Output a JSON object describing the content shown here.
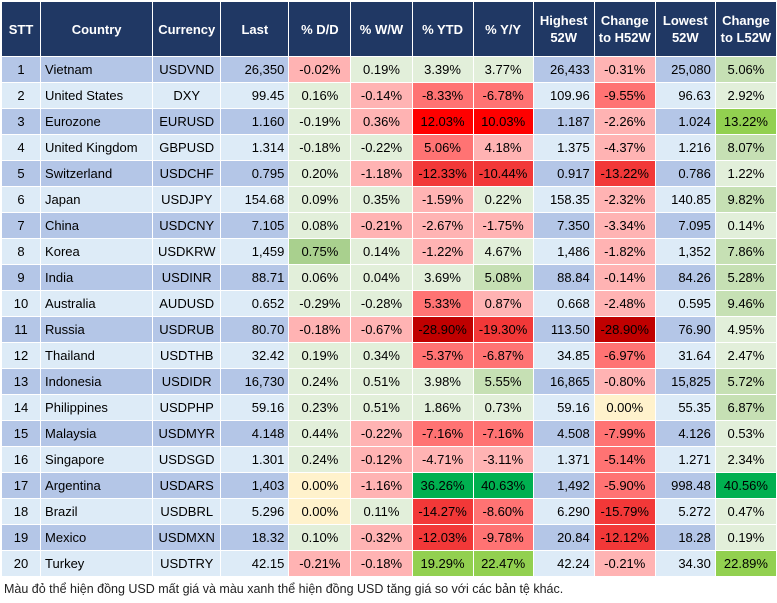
{
  "headers": [
    "STT",
    "Country",
    "Currency",
    "Last",
    "% D/D",
    "% W/W",
    "% YTD",
    "% Y/Y",
    "Highest 52W",
    "Change to H52W",
    "Lowest 52W",
    "Change to L52W"
  ],
  "rows": [
    {
      "stt": "1",
      "country": "Vietnam",
      "currency": "USDVND",
      "last": "26,350",
      "dd": "-0.02%",
      "ww": "0.19%",
      "ytd": "3.39%",
      "yy": "3.77%",
      "high": "26,433",
      "h52": "-0.31%",
      "low": "25,080",
      "l52": "5.06%",
      "colors": [
        "r1",
        "g1",
        "g1",
        "g1",
        "r1",
        "g2"
      ]
    },
    {
      "stt": "2",
      "country": "United States",
      "currency": "DXY",
      "last": "99.45",
      "dd": "0.16%",
      "ww": "-0.14%",
      "ytd": "-8.33%",
      "yy": "-6.78%",
      "high": "109.96",
      "h52": "-9.55%",
      "low": "96.63",
      "l52": "2.92%",
      "colors": [
        "g1",
        "r1",
        "r2",
        "r2",
        "r2",
        "g1"
      ]
    },
    {
      "stt": "3",
      "country": "Eurozone",
      "currency": "EURUSD",
      "last": "1.160",
      "dd": "-0.19%",
      "ww": "0.36%",
      "ytd": "12.03%",
      "yy": "10.03%",
      "high": "1.187",
      "h52": "-2.26%",
      "low": "1.024",
      "l52": "13.22%",
      "colors": [
        "g1",
        "r1",
        "r4",
        "r4",
        "r1",
        "g4"
      ]
    },
    {
      "stt": "4",
      "country": "United Kingdom",
      "currency": "GBPUSD",
      "last": "1.314",
      "dd": "-0.18%",
      "ww": "-0.22%",
      "ytd": "5.06%",
      "yy": "4.18%",
      "high": "1.375",
      "h52": "-4.37%",
      "low": "1.216",
      "l52": "8.07%",
      "colors": [
        "g1",
        "g1",
        "r2",
        "r1",
        "r1",
        "g2"
      ]
    },
    {
      "stt": "5",
      "country": "Switzerland",
      "currency": "USDCHF",
      "last": "0.795",
      "dd": "0.20%",
      "ww": "-1.18%",
      "ytd": "-12.33%",
      "yy": "-10.44%",
      "high": "0.917",
      "h52": "-13.22%",
      "low": "0.786",
      "l52": "1.22%",
      "colors": [
        "g1",
        "r1",
        "r3",
        "r3",
        "r3",
        "g1"
      ]
    },
    {
      "stt": "6",
      "country": "Japan",
      "currency": "USDJPY",
      "last": "154.68",
      "dd": "0.09%",
      "ww": "0.35%",
      "ytd": "-1.59%",
      "yy": "0.22%",
      "high": "158.35",
      "h52": "-2.32%",
      "low": "140.85",
      "l52": "9.82%",
      "colors": [
        "g1",
        "g1",
        "r1",
        "g1",
        "r1",
        "g2"
      ]
    },
    {
      "stt": "7",
      "country": "China",
      "currency": "USDCNY",
      "last": "7.105",
      "dd": "0.08%",
      "ww": "-0.21%",
      "ytd": "-2.67%",
      "yy": "-1.75%",
      "high": "7.350",
      "h52": "-3.34%",
      "low": "7.095",
      "l52": "0.14%",
      "colors": [
        "g1",
        "r1",
        "r1",
        "r1",
        "r1",
        "g1"
      ]
    },
    {
      "stt": "8",
      "country": "Korea",
      "currency": "USDKRW",
      "last": "1,459",
      "dd": "0.75%",
      "ww": "0.14%",
      "ytd": "-1.22%",
      "yy": "4.67%",
      "high": "1,486",
      "h52": "-1.82%",
      "low": "1,352",
      "l52": "7.86%",
      "colors": [
        "g3",
        "g1",
        "r1",
        "g1",
        "r1",
        "g2"
      ]
    },
    {
      "stt": "9",
      "country": "India",
      "currency": "USDINR",
      "last": "88.71",
      "dd": "0.06%",
      "ww": "0.04%",
      "ytd": "3.69%",
      "yy": "5.08%",
      "high": "88.84",
      "h52": "-0.14%",
      "low": "84.26",
      "l52": "5.28%",
      "colors": [
        "g1",
        "g1",
        "g1",
        "g2",
        "r1",
        "g2"
      ]
    },
    {
      "stt": "10",
      "country": "Australia",
      "currency": "AUDUSD",
      "last": "0.652",
      "dd": "-0.29%",
      "ww": "-0.28%",
      "ytd": "5.33%",
      "yy": "0.87%",
      "high": "0.668",
      "h52": "-2.48%",
      "low": "0.595",
      "l52": "9.46%",
      "colors": [
        "g1",
        "g1",
        "r2",
        "r1",
        "r1",
        "g2"
      ]
    },
    {
      "stt": "11",
      "country": "Russia",
      "currency": "USDRUB",
      "last": "80.70",
      "dd": "-0.18%",
      "ww": "-0.67%",
      "ytd": "-28.90%",
      "yy": "-19.30%",
      "high": "113.50",
      "h52": "-28.90%",
      "low": "76.90",
      "l52": "4.95%",
      "colors": [
        "r1",
        "r1",
        "r5",
        "r3",
        "r5",
        "g1"
      ]
    },
    {
      "stt": "12",
      "country": "Thailand",
      "currency": "USDTHB",
      "last": "32.42",
      "dd": "0.19%",
      "ww": "0.34%",
      "ytd": "-5.37%",
      "yy": "-6.87%",
      "high": "34.85",
      "h52": "-6.97%",
      "low": "31.64",
      "l52": "2.47%",
      "colors": [
        "g1",
        "g1",
        "r2",
        "r2",
        "r2",
        "g1"
      ]
    },
    {
      "stt": "13",
      "country": "Indonesia",
      "currency": "USDIDR",
      "last": "16,730",
      "dd": "0.24%",
      "ww": "0.51%",
      "ytd": "3.98%",
      "yy": "5.55%",
      "high": "16,865",
      "h52": "-0.80%",
      "low": "15,825",
      "l52": "5.72%",
      "colors": [
        "g1",
        "g1",
        "g1",
        "g2",
        "r1",
        "g2"
      ]
    },
    {
      "stt": "14",
      "country": "Philippines",
      "currency": "USDPHP",
      "last": "59.16",
      "dd": "0.23%",
      "ww": "0.51%",
      "ytd": "1.86%",
      "yy": "0.73%",
      "high": "59.16",
      "h52": "0.00%",
      "low": "55.35",
      "l52": "6.87%",
      "colors": [
        "g1",
        "g1",
        "g1",
        "g1",
        "y",
        "g2"
      ]
    },
    {
      "stt": "15",
      "country": "Malaysia",
      "currency": "USDMYR",
      "last": "4.148",
      "dd": "0.44%",
      "ww": "-0.22%",
      "ytd": "-7.16%",
      "yy": "-7.16%",
      "high": "4.508",
      "h52": "-7.99%",
      "low": "4.126",
      "l52": "0.53%",
      "colors": [
        "g1",
        "r1",
        "r2",
        "r2",
        "r2",
        "g1"
      ]
    },
    {
      "stt": "16",
      "country": "Singapore",
      "currency": "USDSGD",
      "last": "1.301",
      "dd": "0.24%",
      "ww": "-0.12%",
      "ytd": "-4.71%",
      "yy": "-3.11%",
      "high": "1.371",
      "h52": "-5.14%",
      "low": "1.271",
      "l52": "2.34%",
      "colors": [
        "g1",
        "r1",
        "r1",
        "r1",
        "r2",
        "g1"
      ]
    },
    {
      "stt": "17",
      "country": "Argentina",
      "currency": "USDARS",
      "last": "1,403",
      "dd": "0.00%",
      "ww": "-1.16%",
      "ytd": "36.26%",
      "yy": "40.63%",
      "high": "1,492",
      "h52": "-5.90%",
      "low": "998.48",
      "l52": "40.56%",
      "colors": [
        "y",
        "r1",
        "g5",
        "g5",
        "r2",
        "g5"
      ]
    },
    {
      "stt": "18",
      "country": "Brazil",
      "currency": "USDBRL",
      "last": "5.296",
      "dd": "0.00%",
      "ww": "0.11%",
      "ytd": "-14.27%",
      "yy": "-8.60%",
      "high": "6.290",
      "h52": "-15.79%",
      "low": "5.272",
      "l52": "0.47%",
      "colors": [
        "y",
        "g1",
        "r3",
        "r2",
        "r3",
        "g1"
      ]
    },
    {
      "stt": "19",
      "country": "Mexico",
      "currency": "USDMXN",
      "last": "18.32",
      "dd": "0.10%",
      "ww": "-0.32%",
      "ytd": "-12.03%",
      "yy": "-9.78%",
      "high": "20.84",
      "h52": "-12.12%",
      "low": "18.28",
      "l52": "0.19%",
      "colors": [
        "g1",
        "r1",
        "r3",
        "r2",
        "r3",
        "g1"
      ]
    },
    {
      "stt": "20",
      "country": "Turkey",
      "currency": "USDTRY",
      "last": "42.15",
      "dd": "-0.21%",
      "ww": "-0.18%",
      "ytd": "19.29%",
      "yy": "22.47%",
      "high": "42.24",
      "h52": "-0.21%",
      "low": "34.30",
      "l52": "22.89%",
      "colors": [
        "r1",
        "r1",
        "g4",
        "g4",
        "r1",
        "g4"
      ]
    }
  ],
  "footnote": "Màu đỏ thể hiện đồng USD mất giá và màu xanh thể hiện đồng USD tăng giá so với các bản tệ khác.",
  "palette": {
    "header": "#203864",
    "stripe_odd": "#b4c6e7",
    "stripe_even": "#ddebf7",
    "g1": "#e2efda",
    "g2": "#c6e0b4",
    "g3": "#a9d08e",
    "g4": "#92d050",
    "g5": "#00b050",
    "r1": "#ffb3b3",
    "r2": "#ff7373",
    "r3": "#f23838",
    "r4": "#ff0000",
    "r5": "#c00000",
    "y": "#fff2cc"
  }
}
